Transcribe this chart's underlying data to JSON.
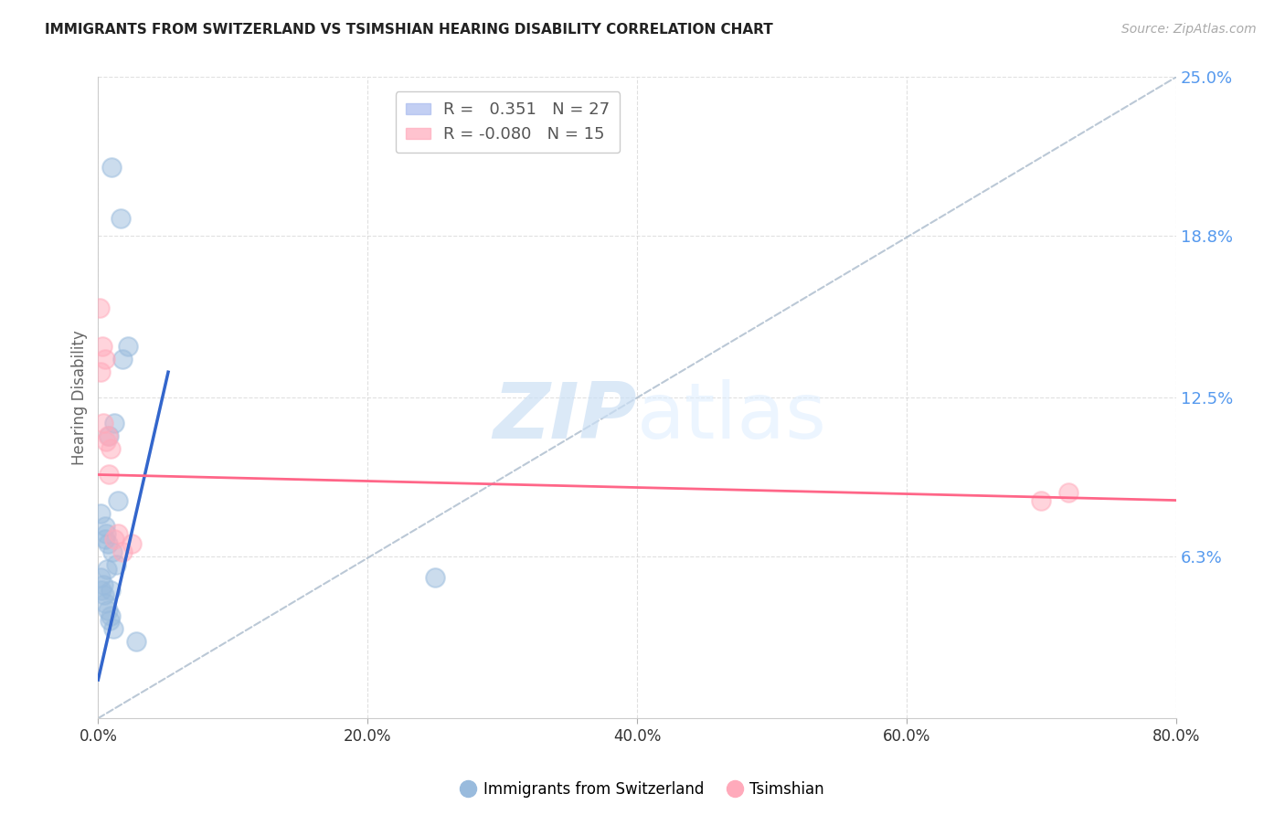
{
  "title": "IMMIGRANTS FROM SWITZERLAND VS TSIMSHIAN HEARING DISABILITY CORRELATION CHART",
  "source": "Source: ZipAtlas.com",
  "ylabel": "Hearing Disability",
  "x_min": 0.0,
  "x_max": 80.0,
  "y_min": 0.0,
  "y_max": 25.0,
  "y_ticks": [
    6.3,
    12.5,
    18.8,
    25.0
  ],
  "x_ticks": [
    0.0,
    20.0,
    40.0,
    60.0,
    80.0
  ],
  "R_blue": "0.351",
  "N_blue": 27,
  "R_pink": "-0.080",
  "N_pink": 15,
  "blue_scatter_x": [
    1.0,
    1.7,
    0.2,
    0.5,
    1.5,
    2.2,
    0.5,
    0.8,
    1.8,
    1.2,
    0.15,
    0.25,
    0.35,
    0.45,
    0.55,
    0.65,
    0.75,
    0.85,
    0.95,
    1.05,
    0.6,
    0.7,
    0.9,
    1.1,
    1.3,
    25.0,
    2.8
  ],
  "blue_scatter_y": [
    21.5,
    19.5,
    8.0,
    7.5,
    8.5,
    14.5,
    7.0,
    11.0,
    14.0,
    11.5,
    5.5,
    5.0,
    5.2,
    4.8,
    4.5,
    5.8,
    4.2,
    3.8,
    5.0,
    6.5,
    7.2,
    6.8,
    4.0,
    3.5,
    6.0,
    5.5,
    3.0
  ],
  "pink_scatter_x": [
    0.1,
    0.3,
    0.5,
    0.7,
    0.9,
    0.2,
    0.4,
    0.6,
    1.8,
    2.5,
    0.8,
    70.0,
    72.0,
    1.2,
    1.5
  ],
  "pink_scatter_y": [
    16.0,
    14.5,
    14.0,
    11.0,
    10.5,
    13.5,
    11.5,
    10.8,
    6.5,
    6.8,
    9.5,
    8.5,
    8.8,
    7.0,
    7.2
  ],
  "blue_trend_x0": 0.0,
  "blue_trend_y0": 1.5,
  "blue_trend_x1": 5.2,
  "blue_trend_y1": 13.5,
  "pink_trend_x0": 0.0,
  "pink_trend_y0": 9.5,
  "pink_trend_x1": 80.0,
  "pink_trend_y1": 8.5,
  "diag_x0": 0.0,
  "diag_y0": 0.0,
  "diag_x1": 80.0,
  "diag_y1": 25.0,
  "blue_color": "#99bbdd",
  "pink_color": "#ffaabb",
  "trend_blue": "#3366cc",
  "trend_pink": "#ff6688",
  "diag_color": "#aabbcc",
  "watermark_zip": "ZIP",
  "watermark_atlas": "atlas",
  "background": "#ffffff",
  "grid_color": "#cccccc"
}
